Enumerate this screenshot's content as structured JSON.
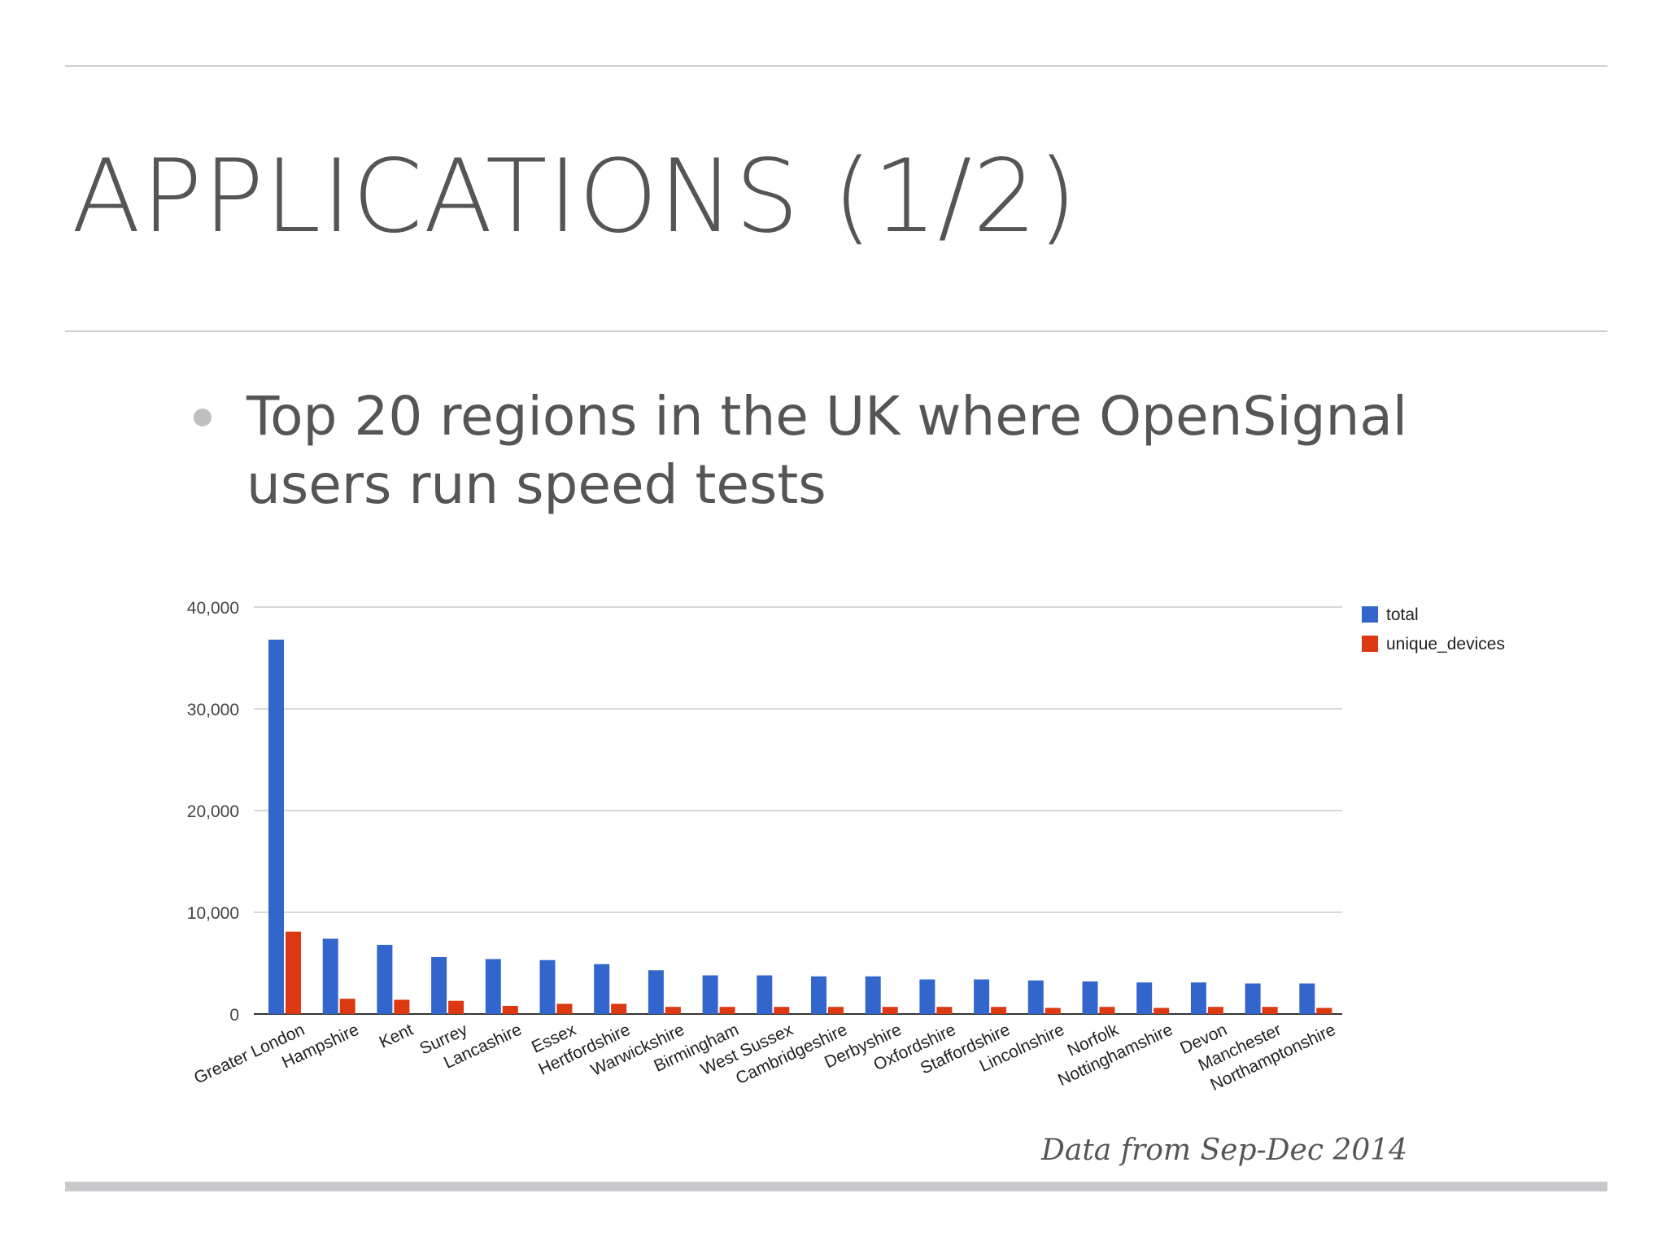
{
  "slide": {
    "title": "APPLICATIONS (1/2)",
    "bullet": "Top 20 regions in the UK where OpenSignal users run speed tests",
    "footnote": "Data from Sep-Dec 2014"
  },
  "chart_data": {
    "type": "bar",
    "title": "",
    "xlabel": "",
    "ylabel": "",
    "ylim": [
      0,
      40000
    ],
    "yticks": [
      "0",
      "10,000",
      "20,000",
      "30,000",
      "40,000"
    ],
    "grid": true,
    "legend_position": "top-right",
    "categories": [
      "Greater London",
      "Hampshire",
      "Kent",
      "Surrey",
      "Lancashire",
      "Essex",
      "Hertfordshire",
      "Warwickshire",
      "Birmingham",
      "West Sussex",
      "Cambridgeshire",
      "Derbyshire",
      "Oxfordshire",
      "Staffordshire",
      "Lincolnshire",
      "Norfolk",
      "Nottinghamshire",
      "Devon",
      "Manchester",
      "Northamptonshire"
    ],
    "series": [
      {
        "name": "total",
        "color": "#3366cc",
        "values": [
          36800,
          7400,
          6800,
          5600,
          5400,
          5300,
          4900,
          4300,
          3800,
          3800,
          3700,
          3700,
          3400,
          3400,
          3300,
          3200,
          3100,
          3100,
          3000,
          3000
        ]
      },
      {
        "name": "unique_devices",
        "color": "#dc3912",
        "values": [
          8100,
          1500,
          1400,
          1300,
          800,
          1000,
          1000,
          700,
          700,
          700,
          700,
          700,
          700,
          700,
          600,
          700,
          600,
          700,
          700,
          600
        ]
      }
    ]
  }
}
